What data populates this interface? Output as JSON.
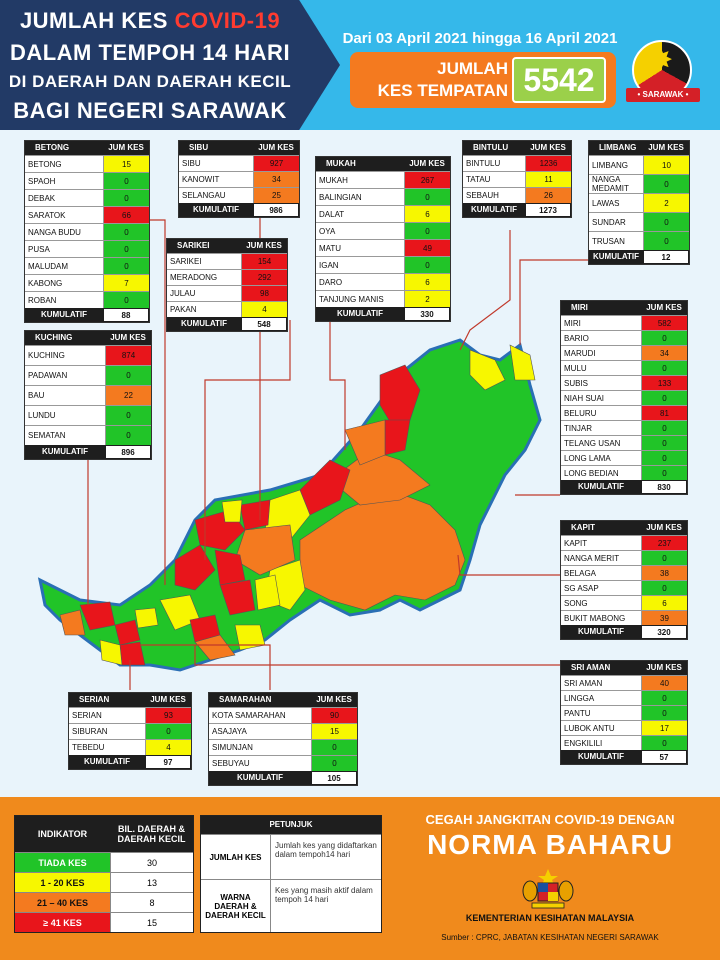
{
  "header": {
    "title_line1_prefix": "JUMLAH KES",
    "title_line1_highlight": "COVID-19",
    "title_line2": "DALAM TEMPOH 14 HARI",
    "title_line3": "DI DAERAH DAN DAERAH KECIL",
    "title_line4": "BAGI NEGERI SARAWAK",
    "date_range": "Dari 03 April 2021 hingga 16 April 2021",
    "total_label_line1": "JUMLAH",
    "total_label_line2": "KES TEMPATAN",
    "total_value": "5542",
    "badge_ribbon": "• SARAWAK •"
  },
  "colors": {
    "none": "#21c428",
    "low": "#f7f700",
    "mid": "#f47a1f",
    "high": "#e8151b"
  },
  "tables": {
    "betong": {
      "header": "BETONG",
      "col": "JUM KES",
      "rows": [
        {
          "name": "BETONG",
          "value": "15",
          "level": "low"
        },
        {
          "name": "SPAOH",
          "value": "0",
          "level": "none"
        },
        {
          "name": "DEBAK",
          "value": "0",
          "level": "none"
        },
        {
          "name": "SARATOK",
          "value": "66",
          "level": "high"
        },
        {
          "name": "NANGA BUDU",
          "value": "0",
          "level": "none"
        },
        {
          "name": "PUSA",
          "value": "0",
          "level": "none"
        },
        {
          "name": "MALUDAM",
          "value": "0",
          "level": "none"
        },
        {
          "name": "KABONG",
          "value": "7",
          "level": "low"
        },
        {
          "name": "ROBAN",
          "value": "0",
          "level": "none"
        }
      ],
      "total_label": "KUMULATIF",
      "total": "88"
    },
    "sibu": {
      "header": "SIBU",
      "col": "JUM KES",
      "rows": [
        {
          "name": "SIBU",
          "value": "927",
          "level": "high"
        },
        {
          "name": "KANOWIT",
          "value": "34",
          "level": "mid"
        },
        {
          "name": "SELANGAU",
          "value": "25",
          "level": "mid"
        }
      ],
      "total_label": "KUMULATIF",
      "total": "986"
    },
    "sarikei": {
      "header": "SARIKEI",
      "col": "JUM KES",
      "rows": [
        {
          "name": "SARIKEI",
          "value": "154",
          "level": "high"
        },
        {
          "name": "MERADONG",
          "value": "292",
          "level": "high"
        },
        {
          "name": "JULAU",
          "value": "98",
          "level": "high"
        },
        {
          "name": "PAKAN",
          "value": "4",
          "level": "low"
        }
      ],
      "total_label": "KUMULATIF",
      "total": "548"
    },
    "mukah": {
      "header": "MUKAH",
      "col": "JUM KES",
      "rows": [
        {
          "name": "MUKAH",
          "value": "267",
          "level": "high"
        },
        {
          "name": "BALINGIAN",
          "value": "0",
          "level": "none"
        },
        {
          "name": "DALAT",
          "value": "6",
          "level": "low"
        },
        {
          "name": "OYA",
          "value": "0",
          "level": "none"
        },
        {
          "name": "MATU",
          "value": "49",
          "level": "high"
        },
        {
          "name": "IGAN",
          "value": "0",
          "level": "none"
        },
        {
          "name": "DARO",
          "value": "6",
          "level": "low"
        },
        {
          "name": "TANJUNG MANIS",
          "value": "2",
          "level": "low"
        }
      ],
      "total_label": "KUMULATIF",
      "total": "330"
    },
    "bintulu": {
      "header": "BINTULU",
      "col": "JUM KES",
      "rows": [
        {
          "name": "BINTULU",
          "value": "1236",
          "level": "high"
        },
        {
          "name": "TATAU",
          "value": "11",
          "level": "low"
        },
        {
          "name": "SEBAUH",
          "value": "26",
          "level": "mid"
        }
      ],
      "total_label": "KUMULATIF",
      "total": "1273"
    },
    "limbang": {
      "header": "LIMBANG",
      "col": "JUM KES",
      "rows": [
        {
          "name": "LIMBANG",
          "value": "10",
          "level": "low"
        },
        {
          "name": "NANGA MEDAMIT",
          "value": "0",
          "level": "none"
        },
        {
          "name": "LAWAS",
          "value": "2",
          "level": "low"
        },
        {
          "name": "SUNDAR",
          "value": "0",
          "level": "none"
        },
        {
          "name": "TRUSAN",
          "value": "0",
          "level": "none"
        }
      ],
      "total_label": "KUMULATIF",
      "total": "12"
    },
    "kuching": {
      "header": "KUCHING",
      "col": "JUM KES",
      "rows": [
        {
          "name": "KUCHING",
          "value": "874",
          "level": "high"
        },
        {
          "name": "PADAWAN",
          "value": "0",
          "level": "none"
        },
        {
          "name": "BAU",
          "value": "22",
          "level": "mid"
        },
        {
          "name": "LUNDU",
          "value": "0",
          "level": "none"
        },
        {
          "name": "SEMATAN",
          "value": "0",
          "level": "none"
        }
      ],
      "total_label": "KUMULATIF",
      "total": "896"
    },
    "miri": {
      "header": "MIRI",
      "col": "JUM KES",
      "rows": [
        {
          "name": "MIRI",
          "value": "582",
          "level": "high"
        },
        {
          "name": "BARIO",
          "value": "0",
          "level": "none"
        },
        {
          "name": "MARUDI",
          "value": "34",
          "level": "mid"
        },
        {
          "name": "MULU",
          "value": "0",
          "level": "none"
        },
        {
          "name": "SUBIS",
          "value": "133",
          "level": "high"
        },
        {
          "name": "NIAH SUAI",
          "value": "0",
          "level": "none"
        },
        {
          "name": "BELURU",
          "value": "81",
          "level": "high"
        },
        {
          "name": "TINJAR",
          "value": "0",
          "level": "none"
        },
        {
          "name": "TELANG USAN",
          "value": "0",
          "level": "none"
        },
        {
          "name": "LONG LAMA",
          "value": "0",
          "level": "none"
        },
        {
          "name": "LONG BEDIAN",
          "value": "0",
          "level": "none"
        }
      ],
      "total_label": "KUMULATIF",
      "total": "830"
    },
    "kapit": {
      "header": "KAPIT",
      "col": "JUM KES",
      "rows": [
        {
          "name": "KAPIT",
          "value": "237",
          "level": "high"
        },
        {
          "name": "NANGA MERIT",
          "value": "0",
          "level": "none"
        },
        {
          "name": "BELAGA",
          "value": "38",
          "level": "mid"
        },
        {
          "name": "SG ASAP",
          "value": "0",
          "level": "none"
        },
        {
          "name": "SONG",
          "value": "6",
          "level": "low"
        },
        {
          "name": "BUKIT MABONG",
          "value": "39",
          "level": "mid"
        }
      ],
      "total_label": "KUMULATIF",
      "total": "320"
    },
    "sriaman": {
      "header": "SRI AMAN",
      "col": "JUM KES",
      "rows": [
        {
          "name": "SRI AMAN",
          "value": "40",
          "level": "mid"
        },
        {
          "name": "LINGGA",
          "value": "0",
          "level": "none"
        },
        {
          "name": "PANTU",
          "value": "0",
          "level": "none"
        },
        {
          "name": "LUBOK ANTU",
          "value": "17",
          "level": "low"
        },
        {
          "name": "ENGKILILI",
          "value": "0",
          "level": "none"
        }
      ],
      "total_label": "KUMULATIF",
      "total": "57"
    },
    "serian": {
      "header": "SERIAN",
      "col": "JUM KES",
      "rows": [
        {
          "name": "SERIAN",
          "value": "93",
          "level": "high"
        },
        {
          "name": "SIBURAN",
          "value": "0",
          "level": "none"
        },
        {
          "name": "TEBEDU",
          "value": "4",
          "level": "low"
        }
      ],
      "total_label": "KUMULATIF",
      "total": "97"
    },
    "samarahan": {
      "header": "SAMARAHAN",
      "col": "JUM KES",
      "rows": [
        {
          "name": "KOTA SAMARAHAN",
          "value": "90",
          "level": "high"
        },
        {
          "name": "ASAJAYA",
          "value": "15",
          "level": "low"
        },
        {
          "name": "SIMUNJAN",
          "value": "0",
          "level": "none"
        },
        {
          "name": "SEBUYAU",
          "value": "0",
          "level": "none"
        }
      ],
      "total_label": "KUMULATIF",
      "total": "105"
    }
  },
  "indicator": {
    "col1": "INDIKATOR",
    "col2": "BIL. DAERAH & DAERAH KECIL",
    "rows": [
      {
        "label": "TIADA KES",
        "count": "30",
        "color": "#21c428",
        "text": "#ffffff"
      },
      {
        "label": "1 - 20 KES",
        "count": "13",
        "color": "#f7f700",
        "text": "#111111"
      },
      {
        "label": "21 – 40 KES",
        "count": "8",
        "color": "#f47a1f",
        "text": "#111111"
      },
      {
        "label": "≥ 41 KES",
        "count": "15",
        "color": "#e8151b",
        "text": "#ffffff"
      }
    ]
  },
  "petunjuk": {
    "title": "PETUNJUK",
    "rows": [
      {
        "key": "JUMLAH KES",
        "desc": "Jumlah kes yang didaftarkan dalam tempoh14 hari"
      },
      {
        "key": "WARNA DAERAH & DAERAH KECIL",
        "desc": "Kes yang masih aktif dalam tempoh 14 hari"
      }
    ]
  },
  "footer": {
    "slogan_line1": "CEGAH JANGKITAN COVID-19 DENGAN",
    "slogan_line2": "NORMA BAHARU",
    "ministry": "KEMENTERIAN KESIHATAN MALAYSIA",
    "source": "Sumber : CPRC, JABATAN KESIHATAN NEGERI SARAWAK"
  }
}
